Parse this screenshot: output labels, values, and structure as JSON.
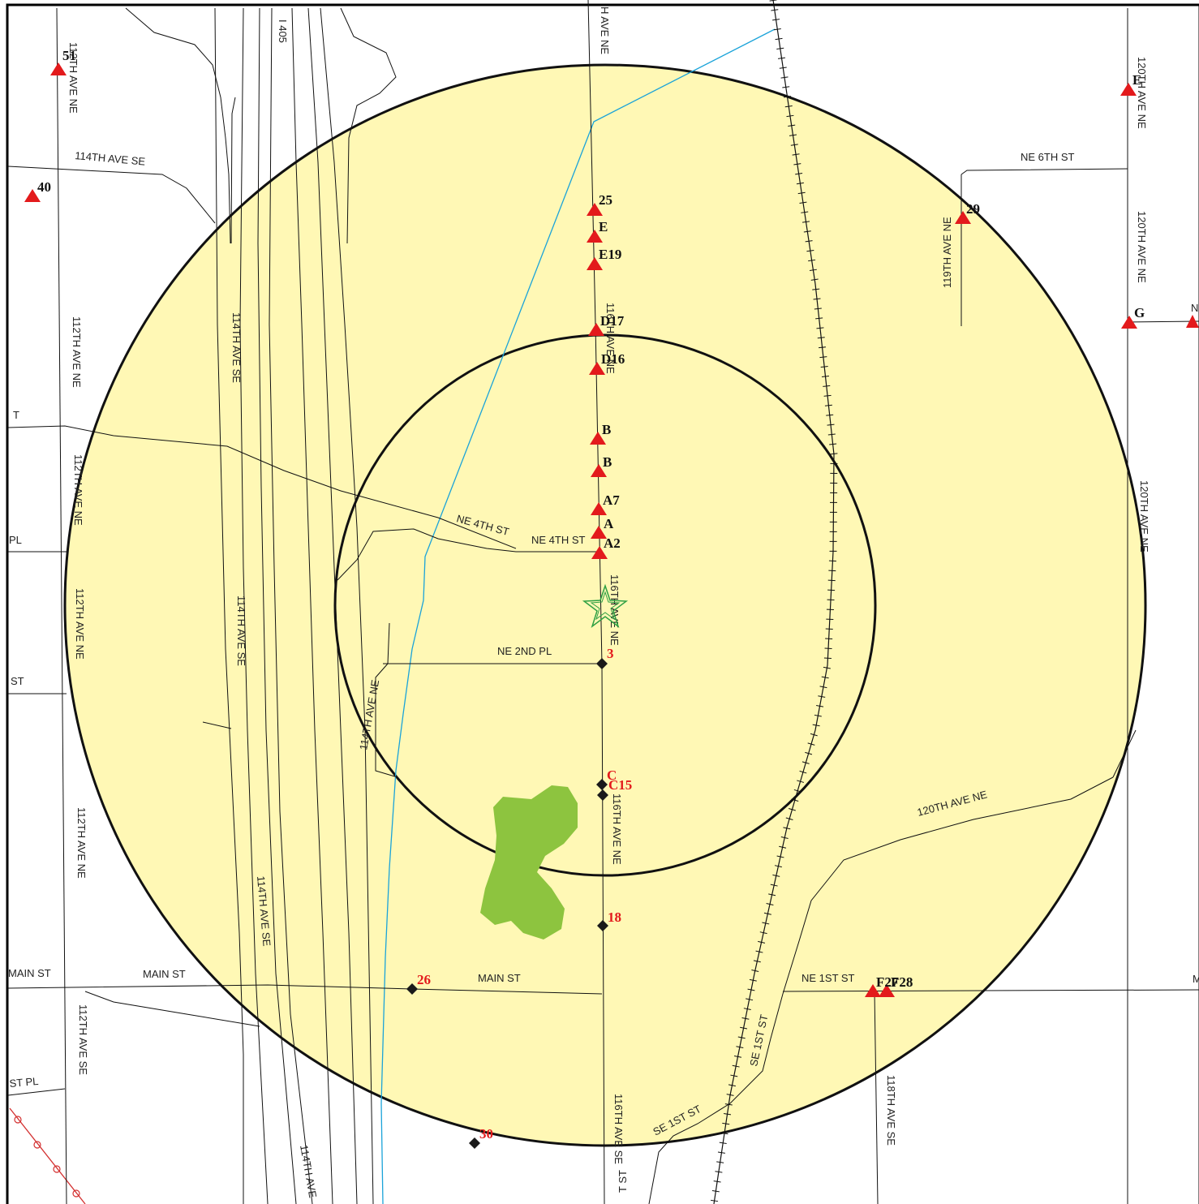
{
  "map": {
    "colors": {
      "ring_fill": "#fff8b5",
      "ring_stroke": "#111111",
      "site_triangle": "#e31a1c",
      "site_diamond": "#1a1a1a",
      "site_label_red": "#e31a1c",
      "creek": "#1aa3d9",
      "park": "#8dc43f",
      "target_star": "#2ea043",
      "trail": "#d32f2f"
    },
    "streets": {
      "ave_ne_top": "H AVE NE",
      "i405": "I 405",
      "ave112_ne_a": "112TH AVE NE",
      "ave112_ne_b": "112TH AVE NE",
      "ave112_ne_c": "112TH AVE NE",
      "ave112_ne_d": "112TH AVE NE",
      "ave112_ne_e": "112TH AVE NE",
      "ave112_se": "112TH AVE SE",
      "ave114_se_top": "114TH AVE SE",
      "ave114_se_a": "114TH AVE SE",
      "ave114_se_b": "114TH AVE SE",
      "ave114_se_c": "114TH AVE SE",
      "ave114_bottom": "114TH AVE",
      "ave114_ne": "114TH AVE NE",
      "ave116_ne_a": "116TH AVE NE",
      "ave116_ne_b": "116TH AVE NE",
      "ave116_ne_c": "116TH AVE NE",
      "ave116_se": "116TH AVE SE",
      "ave118_se": "118TH AVE SE",
      "ave119_ne": "119TH AVE NE",
      "ave120_ne_a": "120TH AVE NE",
      "ave120_ne_b": "120TH AVE NE",
      "ave120_ne_c": "120TH AVE NE",
      "ave120_ne_d": "120TH AVE NE",
      "ne6th": "NE 6TH ST",
      "ne4th_a": "NE 4TH ST",
      "ne4th_b": "NE 4TH ST",
      "ne2nd_pl": "NE 2ND PL",
      "main_st_a": "MAIN ST",
      "main_st_b": "MAIN ST",
      "main_st_c": "MAIN ST",
      "ne1st": "NE 1ST ST",
      "se1st_a": "SE 1ST ST",
      "se1st_b": "SE 1ST ST",
      "edge_t": "T",
      "edge_pl": "PL",
      "edge_st": "ST",
      "edge_st_pl": "ST PL",
      "edge_t_st": "T ST",
      "edge_n": "N",
      "edge_m": "M"
    },
    "sites": {
      "s51": "51",
      "s40": "40",
      "s25": "25",
      "sE": "E",
      "sE19": "E19",
      "sD17": "D17",
      "sD16": "D16",
      "sB1": "B",
      "sB2": "B",
      "sA7": "A7",
      "sA": "A",
      "sA2": "A2",
      "s29": "29",
      "sEL": "E",
      "sG": "G",
      "s3": "3",
      "sC": "C",
      "sC15": "C15",
      "s18": "18",
      "s26": "26",
      "s30": "30",
      "sF28": "F28",
      "sF27": "F27"
    }
  }
}
